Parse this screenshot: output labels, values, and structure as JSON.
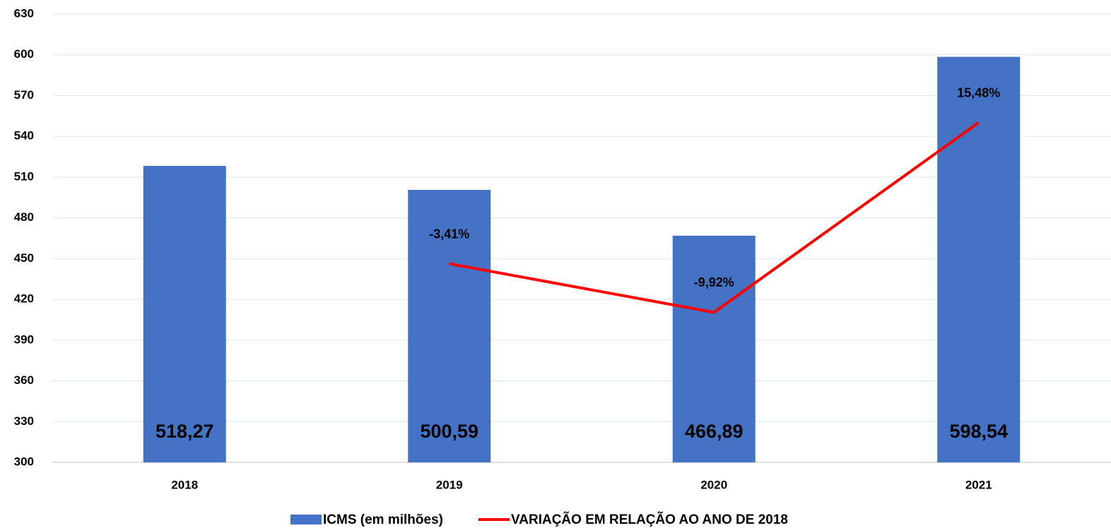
{
  "chart_data": {
    "type": "bar",
    "categories": [
      "2018",
      "2019",
      "2020",
      "2021"
    ],
    "ylim": [
      300,
      630
    ],
    "yticks": [
      300,
      330,
      360,
      390,
      420,
      450,
      480,
      510,
      540,
      570,
      600,
      630
    ],
    "y2lim": [
      -30,
      30
    ],
    "grid": true,
    "legend": "bottom",
    "series": [
      {
        "name": "ICMS (em milhões)",
        "type": "bar",
        "color": "#4472c4",
        "values": [
          518.27,
          500.59,
          466.89,
          598.54
        ],
        "value_labels": [
          "518,27",
          "500,59",
          "466,89",
          "598,54"
        ]
      },
      {
        "name": "VARIAÇÃO EM RELAÇÃO AO ANO DE 2018",
        "type": "line",
        "axis": "y2",
        "color": "#ff0000",
        "values": [
          null,
          -3.41,
          -9.92,
          15.48
        ],
        "value_labels": [
          null,
          "-3,41%",
          "-9,92%",
          "15,48%"
        ]
      }
    ]
  }
}
